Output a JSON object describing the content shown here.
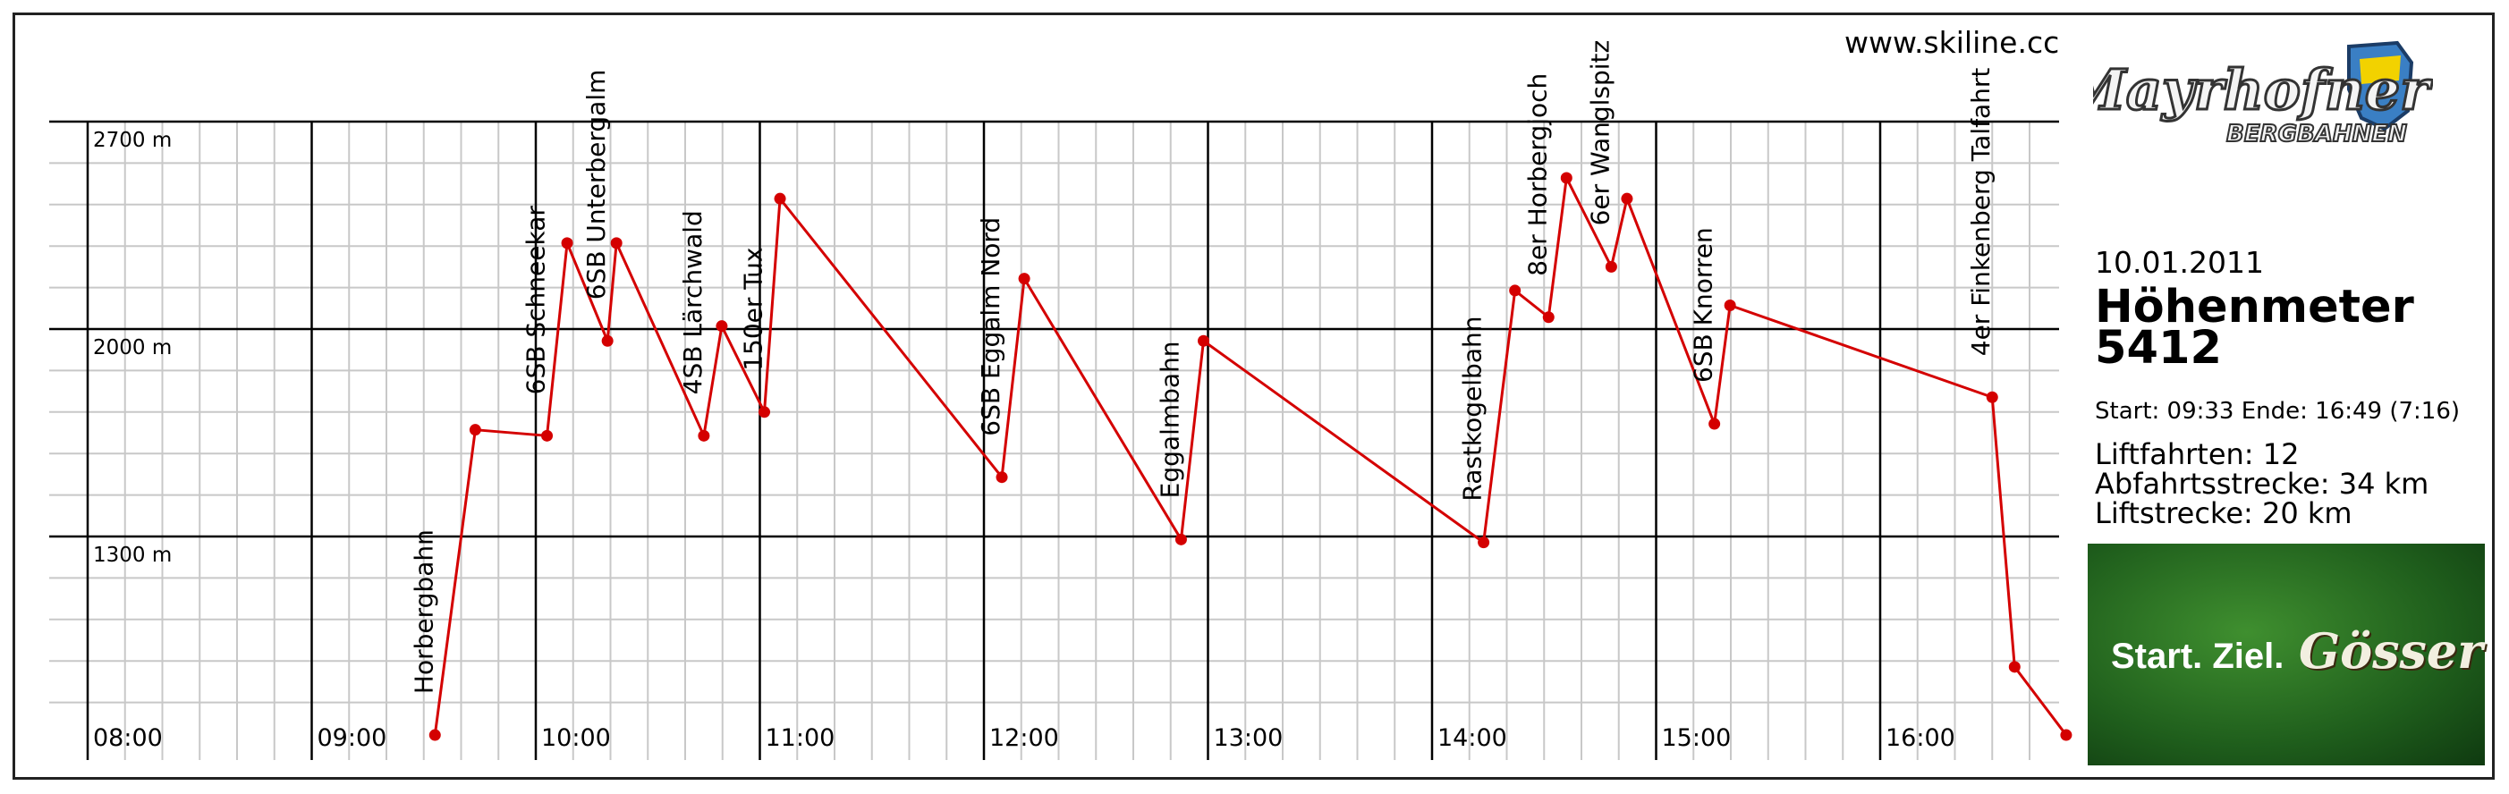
{
  "website": "www.skiline.cc",
  "logo": {
    "brand": "Mayrhofner",
    "sub": "BERGBAHNEN"
  },
  "summary": {
    "date": "10.01.2011",
    "elevation_label": "Höhenmeter",
    "elevation_value": "5412",
    "times": "Start: 09:33 Ende: 16:49 (7:16)",
    "rides": "Liftfahrten: 12",
    "descent": "Abfahrtsstrecke: 34 km",
    "lift_distance": "Liftstrecke: 20 km"
  },
  "ad": {
    "slogan": "Start. Ziel.",
    "brand": "Gösser"
  },
  "colors": {
    "line": "#d40000",
    "grid_minor": "#c8c8c8",
    "grid_major": "#000000"
  },
  "chart_data": {
    "type": "line",
    "x_unit": "time",
    "x_range": [
      8.0,
      16.83
    ],
    "x_ticks": [
      {
        "value": 8,
        "label": "08:00"
      },
      {
        "value": 9,
        "label": "09:00"
      },
      {
        "value": 10,
        "label": "10:00"
      },
      {
        "value": 11,
        "label": "11:00"
      },
      {
        "value": 12,
        "label": "12:00"
      },
      {
        "value": 13,
        "label": "13:00"
      },
      {
        "value": 14,
        "label": "14:00"
      },
      {
        "value": 15,
        "label": "15:00"
      },
      {
        "value": 16,
        "label": "16:00"
      }
    ],
    "y_range": [
      600,
      2700
    ],
    "y_ticks": [
      {
        "value": 2700,
        "label": "2700 m"
      },
      {
        "value": 2000,
        "label": "2000 m"
      },
      {
        "value": 1300,
        "label": "1300 m"
      }
    ],
    "grid": true,
    "points": [
      {
        "t": 9.55,
        "alt": 630
      },
      {
        "t": 9.73,
        "alt": 1660
      },
      {
        "t": 10.05,
        "alt": 1640
      },
      {
        "t": 10.14,
        "alt": 2290
      },
      {
        "t": 10.32,
        "alt": 1960
      },
      {
        "t": 10.36,
        "alt": 2290
      },
      {
        "t": 10.75,
        "alt": 1640
      },
      {
        "t": 10.83,
        "alt": 2010
      },
      {
        "t": 11.02,
        "alt": 1720
      },
      {
        "t": 11.09,
        "alt": 2440
      },
      {
        "t": 12.08,
        "alt": 1500
      },
      {
        "t": 12.18,
        "alt": 2170
      },
      {
        "t": 12.88,
        "alt": 1290
      },
      {
        "t": 12.98,
        "alt": 1960
      },
      {
        "t": 14.23,
        "alt": 1280
      },
      {
        "t": 14.37,
        "alt": 2130
      },
      {
        "t": 14.52,
        "alt": 2040
      },
      {
        "t": 14.6,
        "alt": 2510
      },
      {
        "t": 14.8,
        "alt": 2210
      },
      {
        "t": 14.87,
        "alt": 2440
      },
      {
        "t": 15.26,
        "alt": 1680
      },
      {
        "t": 15.33,
        "alt": 2080
      },
      {
        "t": 16.5,
        "alt": 1770
      },
      {
        "t": 16.6,
        "alt": 860
      },
      {
        "t": 16.83,
        "alt": 630
      }
    ],
    "lifts": [
      {
        "name": "Horbergbahn",
        "t": 9.55,
        "alt": 630
      },
      {
        "name": "6SB Schneekar",
        "t": 10.05,
        "alt": 1640
      },
      {
        "name": "6SB Unterbergalm",
        "t": 10.32,
        "alt": 1960
      },
      {
        "name": "4SB Lärchwald",
        "t": 10.75,
        "alt": 1640
      },
      {
        "name": "150er Tux",
        "t": 11.02,
        "alt": 1720
      },
      {
        "name": "6SB Eggalm Nord",
        "t": 12.08,
        "alt": 1500
      },
      {
        "name": "Eggalmbahn",
        "t": 12.88,
        "alt": 1290
      },
      {
        "name": "Rastkogelbahn",
        "t": 14.23,
        "alt": 1280
      },
      {
        "name": "8er Horbergjoch",
        "t": 14.52,
        "alt": 2040
      },
      {
        "name": "6er Wanglspitz",
        "t": 14.8,
        "alt": 2210
      },
      {
        "name": "6SB Knorren",
        "t": 15.26,
        "alt": 1680
      },
      {
        "name": "4er Finkenberg Talfahrt",
        "t": 16.5,
        "alt": 1770
      }
    ]
  }
}
